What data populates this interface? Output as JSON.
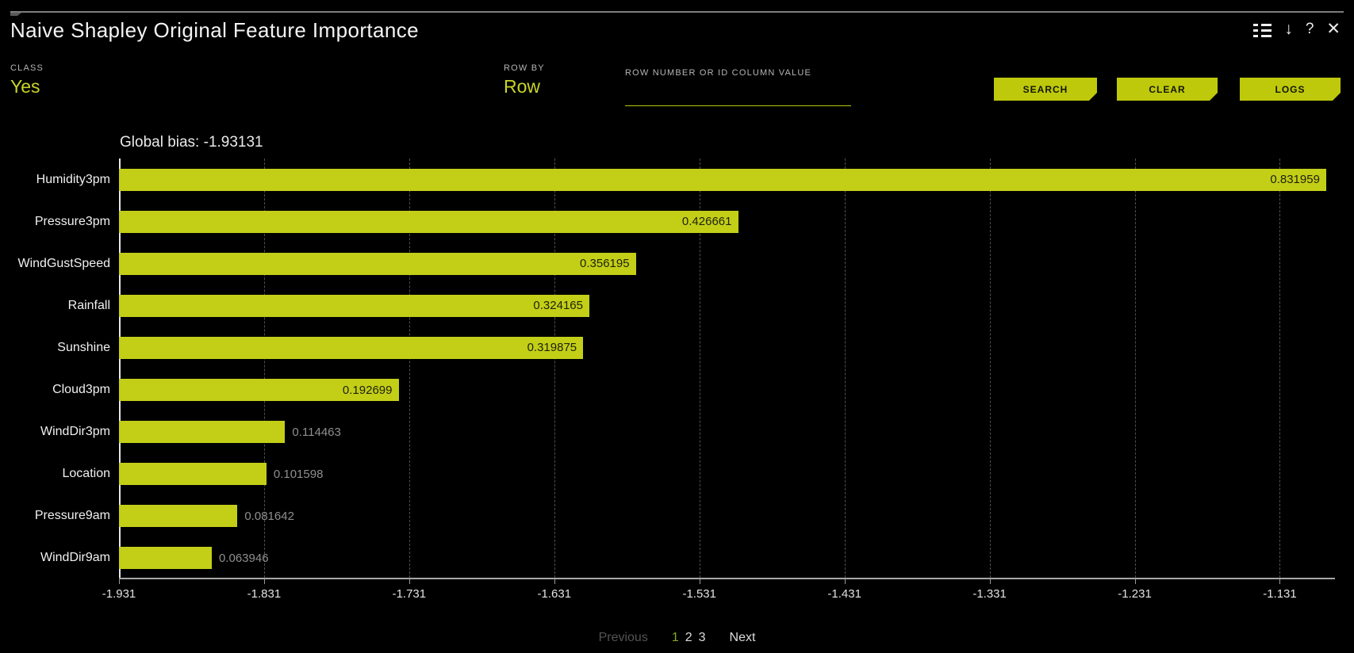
{
  "colors": {
    "background": "#000000",
    "accent_text": "#c9d526",
    "bar": "#c3cf17",
    "button": "#bec90c",
    "button_text": "#141700",
    "value_inside": "#20220a",
    "value_outside": "#8f8f8f",
    "active_page": "#86a919"
  },
  "window": {
    "title": "Naive Shapley Original Feature Importance",
    "icons": {
      "options": "chart-options-list-icon",
      "download": "↓",
      "help": "?",
      "close": "✕"
    }
  },
  "controls": {
    "class_label": "CLASS",
    "class_value": "Yes",
    "row_by_label": "ROW BY",
    "row_by_value": "Row",
    "row_input_label": "ROW NUMBER OR ID COLUMN VALUE",
    "row_input_value": "",
    "search_button": "SEARCH",
    "clear_button": "CLEAR",
    "logs_button": "LOGS"
  },
  "chart_data": {
    "type": "bar",
    "orientation": "horizontal",
    "title": "Global bias: -1.93131",
    "global_bias": -1.93131,
    "categories": [
      "Humidity3pm",
      "Pressure3pm",
      "WindGustSpeed",
      "Rainfall",
      "Sunshine",
      "Cloud3pm",
      "WindDir3pm",
      "Location",
      "Pressure9am",
      "WindDir9am"
    ],
    "values": [
      0.831959,
      0.426661,
      0.356195,
      0.324165,
      0.319875,
      0.192699,
      0.114463,
      0.101598,
      0.081642,
      0.063946
    ],
    "value_label_decimals": 6,
    "xlabel": "",
    "ylabel": "",
    "x_axis": {
      "xmin": -1.931,
      "xmax": -1.093,
      "ticks": [
        "-1.931",
        "-1.831",
        "-1.731",
        "-1.631",
        "-1.531",
        "-1.431",
        "-1.331",
        "-1.231",
        "-1.131"
      ],
      "tick_values": [
        -1.931,
        -1.831,
        -1.731,
        -1.631,
        -1.531,
        -1.431,
        -1.331,
        -1.231,
        -1.131
      ]
    },
    "grid": "vertical-dashed",
    "legend": false,
    "note": "bars start at global bias (left axis) and show each feature contribution"
  },
  "pagination": {
    "previous": "Previous",
    "pages": [
      "1",
      "2",
      "3"
    ],
    "active_page": "1",
    "next": "Next"
  }
}
